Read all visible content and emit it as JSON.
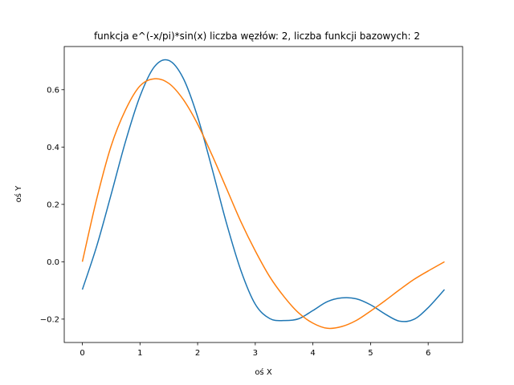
{
  "chart_data": {
    "type": "line",
    "title": "funkcja e^(-x/pi)*sin(x) liczba węzłów: 2, liczba funkcji bazowych: 2",
    "xlabel": "oś X",
    "ylabel": "oś Y",
    "xlim": [
      -0.314,
      6.597
    ],
    "ylim": [
      -0.2815,
      0.7505
    ],
    "x_ticks": [
      0,
      1,
      2,
      3,
      4,
      5,
      6
    ],
    "y_ticks": [
      -0.2,
      0.0,
      0.2,
      0.4,
      0.6
    ],
    "x_tick_labels": [
      "0",
      "1",
      "2",
      "3",
      "4",
      "5",
      "6"
    ],
    "y_tick_labels": [
      "−0.2",
      "0.0",
      "0.2",
      "0.4",
      "0.6"
    ],
    "grid": false,
    "series": [
      {
        "color": "#1f77b4",
        "x": [
          0,
          0.25,
          0.5,
          0.75,
          1.0,
          1.25,
          1.5,
          1.75,
          2.0,
          2.25,
          2.5,
          2.75,
          3.0,
          3.25,
          3.5,
          3.75,
          4.0,
          4.25,
          4.5,
          4.75,
          5.0,
          5.25,
          5.5,
          5.75,
          6.0,
          6.283
        ],
        "y": [
          -0.097,
          0.055,
          0.235,
          0.42,
          0.577,
          0.68,
          0.702,
          0.64,
          0.505,
          0.325,
          0.135,
          -0.03,
          -0.148,
          -0.198,
          -0.205,
          -0.199,
          -0.17,
          -0.139,
          -0.126,
          -0.129,
          -0.15,
          -0.182,
          -0.207,
          -0.201,
          -0.16,
          -0.097
        ]
      },
      {
        "color": "#ff7f0e",
        "x": [
          0,
          0.25,
          0.5,
          0.75,
          1.0,
          1.25,
          1.5,
          1.75,
          2.0,
          2.25,
          2.5,
          2.75,
          3.0,
          3.25,
          3.5,
          3.75,
          4.0,
          4.25,
          4.5,
          4.75,
          5.0,
          5.25,
          5.5,
          5.75,
          6.0,
          6.283
        ],
        "y": [
          0.0,
          0.22,
          0.404,
          0.53,
          0.613,
          0.638,
          0.622,
          0.566,
          0.48,
          0.372,
          0.256,
          0.14,
          0.038,
          -0.052,
          -0.122,
          -0.178,
          -0.214,
          -0.232,
          -0.226,
          -0.205,
          -0.172,
          -0.136,
          -0.098,
          -0.062,
          -0.032,
          0.0
        ]
      }
    ]
  }
}
